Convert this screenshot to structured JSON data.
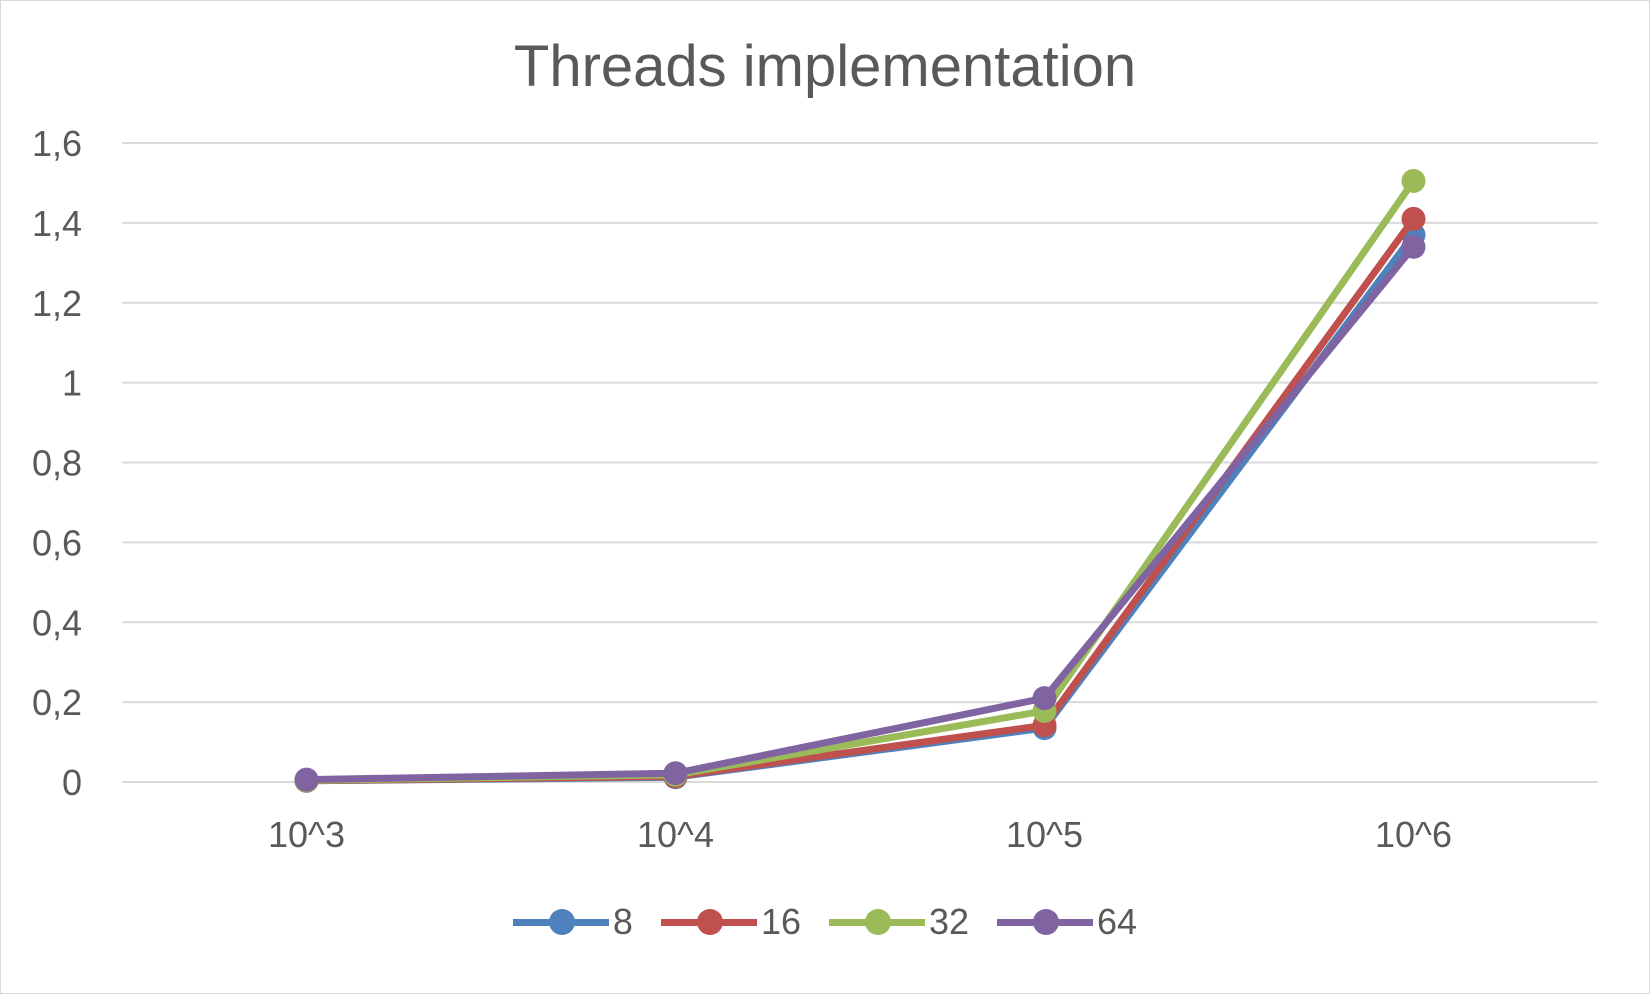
{
  "chart_data": {
    "type": "line",
    "title": "Threads implementation",
    "categories": [
      "10^3",
      "10^4",
      "10^5",
      "10^6"
    ],
    "y_ticks": [
      "0",
      "0,2",
      "0,4",
      "0,6",
      "0,8",
      "1",
      "1,2",
      "1,4",
      "1,6"
    ],
    "ylim": [
      0,
      1.6
    ],
    "grid": true,
    "legend_position": "bottom",
    "series": [
      {
        "name": "8",
        "color": "#4f81bd",
        "values": [
          0.003,
          0.012,
          0.135,
          1.37
        ]
      },
      {
        "name": "16",
        "color": "#c0504d",
        "values": [
          0.003,
          0.014,
          0.142,
          1.41
        ]
      },
      {
        "name": "32",
        "color": "#9bbb59",
        "values": [
          0.004,
          0.018,
          0.178,
          1.505
        ]
      },
      {
        "name": "64",
        "color": "#8064a2",
        "values": [
          0.006,
          0.022,
          0.21,
          1.34
        ]
      }
    ]
  }
}
